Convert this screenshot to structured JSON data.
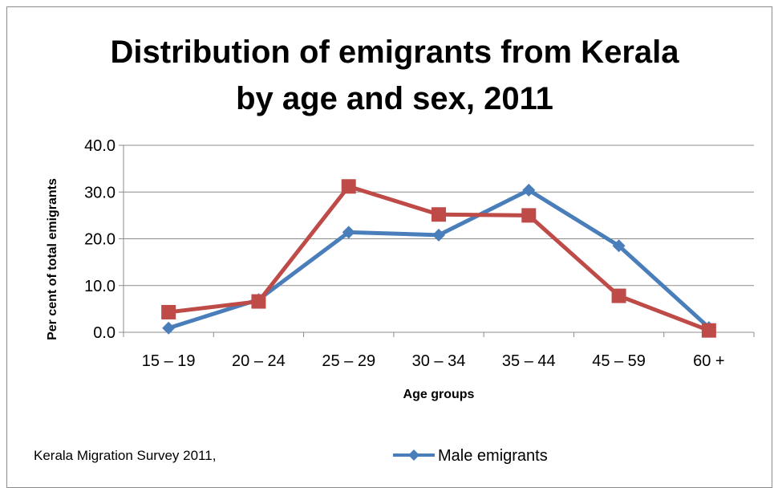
{
  "chart_data": {
    "type": "line",
    "title_lines": [
      "Distribution of emigrants from Kerala",
      "by age and sex, 2011"
    ],
    "xlabel": "Age groups",
    "ylabel": "Per cent of total emigrants",
    "categories": [
      "15 – 19",
      "20 – 24",
      "25 – 29",
      "30 – 34",
      "35 – 44",
      "45 – 59",
      "60 +"
    ],
    "ylim": [
      0,
      40
    ],
    "yticks": [
      "0.0",
      "10.0",
      "20.0",
      "30.0",
      "40.0"
    ],
    "grid": "horizontal",
    "series": [
      {
        "name": "Male emigrants",
        "color": "#4a7ebb",
        "marker": "diamond",
        "values": [
          0.9,
          7.0,
          21.4,
          20.8,
          30.4,
          18.5,
          1.0
        ]
      },
      {
        "name": "",
        "color": "#be4b48",
        "marker": "square",
        "values": [
          4.3,
          6.6,
          31.2,
          25.2,
          25.0,
          7.8,
          0.4
        ]
      }
    ],
    "legend_position": "bottom"
  },
  "note": "Kerala Migration Survey 2011,"
}
